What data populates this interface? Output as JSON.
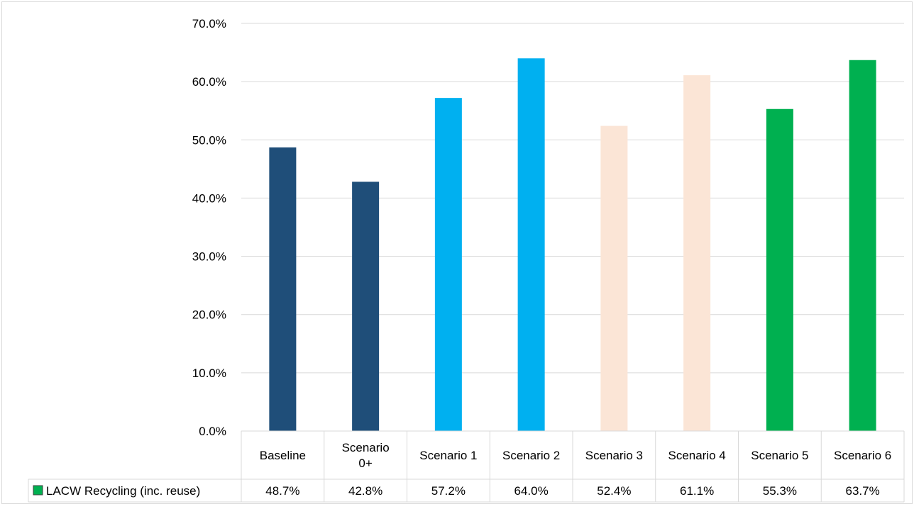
{
  "chart_data": {
    "type": "bar",
    "title": "",
    "xlabel": "",
    "ylabel": "",
    "ylim": [
      0,
      70
    ],
    "y_ticks": [
      "0.0%",
      "10.0%",
      "20.0%",
      "30.0%",
      "40.0%",
      "50.0%",
      "60.0%",
      "70.0%"
    ],
    "y_tick_values": [
      0,
      10,
      20,
      30,
      40,
      50,
      60,
      70
    ],
    "grid": true,
    "legend_placement": "data-table-left",
    "categories": [
      [
        "Baseline"
      ],
      [
        "Scenario",
        "0+"
      ],
      [
        "Scenario 1"
      ],
      [
        "Scenario 2"
      ],
      [
        "Scenario 3"
      ],
      [
        "Scenario 4"
      ],
      [
        "Scenario 5"
      ],
      [
        "Scenario 6"
      ]
    ],
    "series": [
      {
        "name": "LACW Recycling (inc. reuse)",
        "values": [
          48.7,
          42.8,
          57.2,
          64.0,
          52.4,
          61.1,
          55.3,
          63.7
        ],
        "labels": [
          "48.7%",
          "42.8%",
          "57.2%",
          "64.0%",
          "52.4%",
          "61.1%",
          "55.3%",
          "63.7%"
        ],
        "colors": [
          "#1F4E79",
          "#1F4E79",
          "#00B0F0",
          "#00B0F0",
          "#FBE5D6",
          "#FBE5D6",
          "#00B050",
          "#00B050"
        ],
        "legend_color": "#00B050"
      }
    ]
  }
}
